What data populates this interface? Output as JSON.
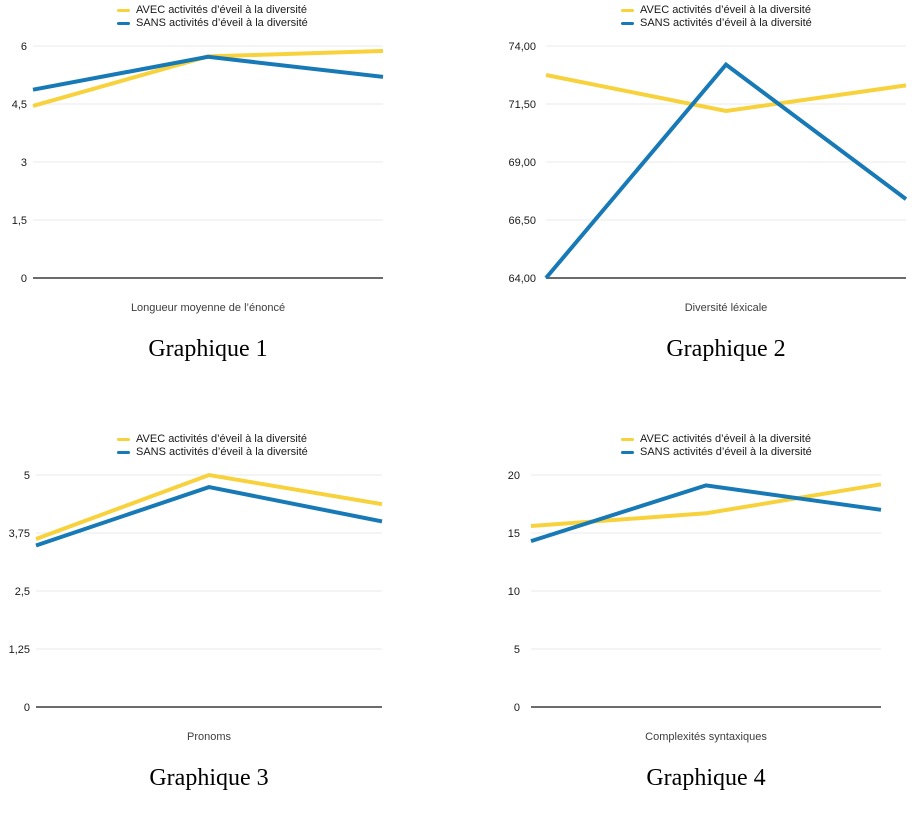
{
  "colors": {
    "avec": "#F7D23C",
    "sans": "#1779B6",
    "gridline": "#E8E8E8",
    "axis": "#6B6B6B",
    "background": "#FFFFFF"
  },
  "chart_data": [
    {
      "type": "line",
      "caption": "Graphique 1",
      "xlabel": "Longueur moyenne de l’énoncé",
      "ylim": [
        0,
        6
      ],
      "ytick_labels": [
        "6",
        "4,5",
        "3",
        "1,5",
        "0"
      ],
      "grid": true,
      "legend_position": "top",
      "series": [
        {
          "name": "AVEC activités d’éveil à la diversité",
          "color": "#F7D23C",
          "values": [
            4.45,
            5.73,
            5.87
          ]
        },
        {
          "name": "SANS activités d’éveil à la diversité",
          "color": "#1779B6",
          "values": [
            4.87,
            5.72,
            5.2
          ]
        }
      ]
    },
    {
      "type": "line",
      "caption": "Graphique 2",
      "xlabel": "Diversité léxicale",
      "ylim": [
        64,
        74
      ],
      "ytick_labels": [
        "74,00",
        "71,50",
        "69,00",
        "66,50",
        "64,00"
      ],
      "grid": true,
      "legend_position": "top",
      "series": [
        {
          "name": "AVEC activités d’éveil à la diversité",
          "color": "#F7D23C",
          "values": [
            72.75,
            71.2,
            72.3
          ]
        },
        {
          "name": "SANS activités d’éveil à la diversité",
          "color": "#1779B6",
          "values": [
            64.0,
            73.2,
            67.4
          ]
        }
      ]
    },
    {
      "type": "line",
      "caption": "Graphique 3",
      "xlabel": "Pronoms",
      "ylim": [
        0,
        5
      ],
      "ytick_labels": [
        "5",
        "3,75",
        "2,5",
        "1,25",
        "0"
      ],
      "grid": true,
      "legend_position": "top",
      "series": [
        {
          "name": "AVEC activités d’éveil à la diversité",
          "color": "#F7D23C",
          "values": [
            3.62,
            5.0,
            4.37
          ]
        },
        {
          "name": "SANS activités d’éveil à la diversité",
          "color": "#1779B6",
          "values": [
            3.48,
            4.74,
            4.0
          ]
        }
      ]
    },
    {
      "type": "line",
      "caption": "Graphique 4",
      "xlabel": "Complexités syntaxiques",
      "ylim": [
        0,
        20
      ],
      "ytick_labels": [
        "20",
        "15",
        "10",
        "5",
        "0"
      ],
      "grid": true,
      "legend_position": "top",
      "series": [
        {
          "name": "AVEC activités d’éveil à la diversité",
          "color": "#F7D23C",
          "values": [
            15.6,
            16.7,
            19.2
          ]
        },
        {
          "name": "SANS activités d’éveil à la diversité",
          "color": "#1779B6",
          "values": [
            14.3,
            19.1,
            17.0
          ]
        }
      ]
    }
  ]
}
